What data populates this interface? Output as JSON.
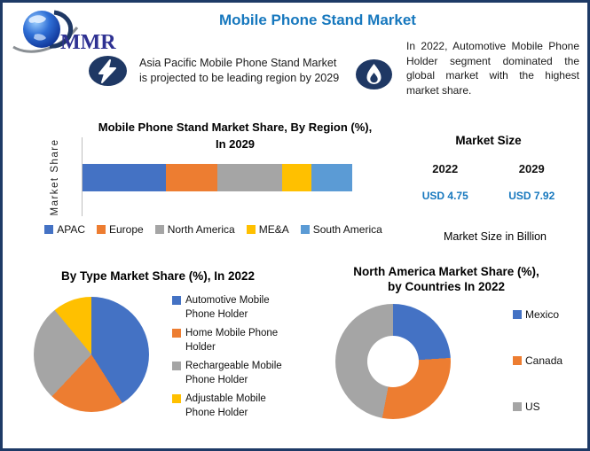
{
  "theme": {
    "border_navy": "#1E3A66",
    "icon_navy": "#1F3864",
    "title_blue": "#1778BE",
    "value_blue": "#1778BE",
    "logo_text_blue": "#2E3192",
    "axis_gray": "#BFBFBF"
  },
  "header": {
    "logo_text": "MMR",
    "title": "Mobile Phone Stand Market"
  },
  "callouts": {
    "left": {
      "icon": "lightning-icon",
      "lines": [
        "Asia Pacific Mobile Phone Stand Market",
        "is projected to be leading region by 2029"
      ]
    },
    "right": {
      "icon": "flame-icon",
      "text": "In 2022, Automotive Mobile Phone Holder segment dominated the global market with the highest market share."
    }
  },
  "market_size": {
    "heading": "Market Size",
    "years": [
      "2022",
      "2029"
    ],
    "values": [
      "USD 4.75",
      "USD 7.92"
    ],
    "note": "Market Size in Billion"
  },
  "chart_data": [
    {
      "type": "bar",
      "variant": "horizontal-stacked",
      "title": "Mobile Phone Stand Market Share, By Region (%), In 2029",
      "title_lines": [
        "Mobile Phone Stand Market Share, By Region (%),",
        "In 2029"
      ],
      "ylabel": "Market Share",
      "xlabel": "",
      "categories": [
        "APAC",
        "Europe",
        "North America",
        "ME&A",
        "South America"
      ],
      "values": [
        31,
        19,
        24,
        11,
        15
      ],
      "unit": "%",
      "colors": [
        "#4472C4",
        "#ED7D31",
        "#A5A5A5",
        "#FFC000",
        "#5B9BD5"
      ],
      "legend_position": "bottom",
      "grid": false
    },
    {
      "type": "pie",
      "title": "By Type Market Share (%), In 2022",
      "categories": [
        "Automotive Mobile Phone Holder",
        "Home Mobile Phone Holder",
        "Rechargeable Mobile Phone Holder",
        "Adjustable Mobile Phone Holder"
      ],
      "values": [
        41,
        21,
        27,
        11
      ],
      "unit": "%",
      "colors": [
        "#4472C4",
        "#ED7D31",
        "#A5A5A5",
        "#FFC000"
      ],
      "legend_position": "right"
    },
    {
      "type": "donut",
      "title": "North America Market Share (%), by Countries In 2022",
      "title_lines": [
        "North America Market Share (%),",
        "by Countries In 2022"
      ],
      "categories": [
        "Mexico",
        "Canada",
        "US"
      ],
      "values": [
        24,
        29,
        47
      ],
      "unit": "%",
      "colors": [
        "#4472C4",
        "#ED7D31",
        "#A5A5A5"
      ],
      "legend_position": "right"
    }
  ]
}
